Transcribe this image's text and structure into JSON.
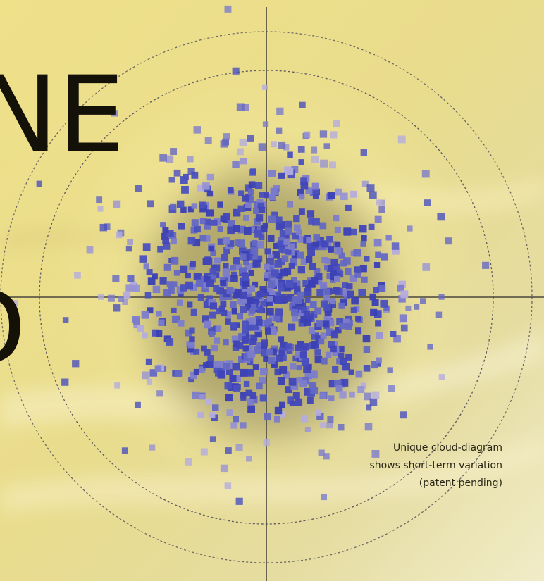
{
  "headline": {
    "line1": "NE",
    "line2": "D"
  },
  "caption": {
    "lines": [
      "Unique cloud-diagram",
      "shows short-term variation",
      "(patent pending)"
    ]
  }
}
